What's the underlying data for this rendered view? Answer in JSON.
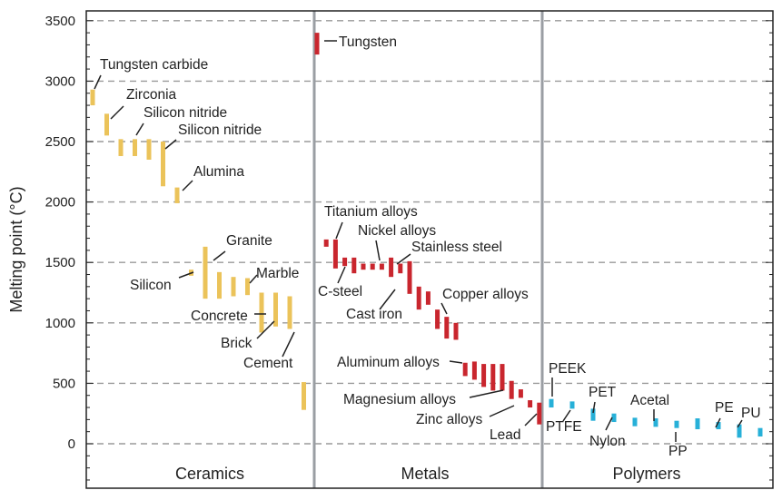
{
  "chart_data": {
    "type": "range-bar",
    "ylabel": "Melting point (°C)",
    "ylim": [
      -400,
      3600
    ],
    "yticks": [
      0,
      500,
      1000,
      1500,
      2000,
      2500,
      3000,
      3500
    ],
    "grid": "horizontal dashed",
    "colors": {
      "Ceramics": "#ebc35a",
      "Metals": "#c9262e",
      "Polymers": "#27b0d8"
    },
    "groups": [
      {
        "name": "Ceramics",
        "bars": [
          {
            "x": 1,
            "low": 2800,
            "high": 2930
          },
          {
            "x": 2,
            "low": 2550,
            "high": 2730
          },
          {
            "x": 3,
            "low": 2380,
            "high": 2520
          },
          {
            "x": 4,
            "low": 2380,
            "high": 2520
          },
          {
            "x": 5,
            "low": 2350,
            "high": 2520
          },
          {
            "x": 6,
            "low": 2130,
            "high": 2500
          },
          {
            "x": 7,
            "low": 1990,
            "high": 2120
          },
          {
            "x": 8,
            "low": 1390,
            "high": 1440
          },
          {
            "x": 9,
            "low": 1200,
            "high": 1630
          },
          {
            "x": 10,
            "low": 1200,
            "high": 1420
          },
          {
            "x": 11,
            "low": 1220,
            "high": 1380
          },
          {
            "x": 12,
            "low": 1230,
            "high": 1370
          },
          {
            "x": 13,
            "low": 920,
            "high": 1250
          },
          {
            "x": 14,
            "low": 970,
            "high": 1250
          },
          {
            "x": 15,
            "low": 950,
            "high": 1220
          },
          {
            "x": 16,
            "low": 280,
            "high": 510
          }
        ]
      },
      {
        "name": "Metals",
        "bars": [
          {
            "x": 1,
            "low": 3220,
            "high": 3400
          },
          {
            "x": 2,
            "low": 1630,
            "high": 1690
          },
          {
            "x": 3,
            "low": 1450,
            "high": 1690
          },
          {
            "x": 4,
            "low": 1470,
            "high": 1540
          },
          {
            "x": 5,
            "low": 1410,
            "high": 1540
          },
          {
            "x": 6,
            "low": 1440,
            "high": 1490
          },
          {
            "x": 7,
            "low": 1440,
            "high": 1490
          },
          {
            "x": 8,
            "low": 1440,
            "high": 1490
          },
          {
            "x": 9,
            "low": 1380,
            "high": 1540
          },
          {
            "x": 10,
            "low": 1410,
            "high": 1490
          },
          {
            "x": 11,
            "low": 1240,
            "high": 1510
          },
          {
            "x": 12,
            "low": 1110,
            "high": 1300
          },
          {
            "x": 13,
            "low": 1150,
            "high": 1260
          },
          {
            "x": 14,
            "low": 950,
            "high": 1110
          },
          {
            "x": 15,
            "low": 870,
            "high": 1050
          },
          {
            "x": 16,
            "low": 860,
            "high": 1000
          },
          {
            "x": 17,
            "low": 560,
            "high": 670
          },
          {
            "x": 18,
            "low": 530,
            "high": 680
          },
          {
            "x": 19,
            "low": 470,
            "high": 660
          },
          {
            "x": 20,
            "low": 440,
            "high": 660
          },
          {
            "x": 21,
            "low": 440,
            "high": 660
          },
          {
            "x": 22,
            "low": 370,
            "high": 520
          },
          {
            "x": 23,
            "low": 380,
            "high": 450
          },
          {
            "x": 24,
            "low": 300,
            "high": 360
          },
          {
            "x": 25,
            "low": 160,
            "high": 340
          }
        ]
      },
      {
        "name": "Polymers",
        "bars": [
          {
            "x": 1,
            "low": 300,
            "high": 370
          },
          {
            "x": 2,
            "low": 290,
            "high": 350
          },
          {
            "x": 3,
            "low": 190,
            "high": 290
          },
          {
            "x": 4,
            "low": 180,
            "high": 250
          },
          {
            "x": 5,
            "low": 145,
            "high": 215
          },
          {
            "x": 6,
            "low": 140,
            "high": 210
          },
          {
            "x": 7,
            "low": 130,
            "high": 190
          },
          {
            "x": 8,
            "low": 120,
            "high": 210
          },
          {
            "x": 9,
            "low": 120,
            "high": 180
          },
          {
            "x": 10,
            "low": 50,
            "high": 160
          },
          {
            "x": 11,
            "low": 60,
            "high": 130
          }
        ]
      }
    ],
    "annotations": [
      {
        "text": "Tungsten carbide"
      },
      {
        "text": "Zirconia"
      },
      {
        "text": "Silicon nitride"
      },
      {
        "text": "Silicon nitride"
      },
      {
        "text": "Alumina"
      },
      {
        "text": "Granite"
      },
      {
        "text": "Silicon"
      },
      {
        "text": "Marble"
      },
      {
        "text": "Concrete"
      },
      {
        "text": "Brick"
      },
      {
        "text": "Cement"
      },
      {
        "text": "Tungsten"
      },
      {
        "text": "Titanium alloys"
      },
      {
        "text": "Nickel alloys"
      },
      {
        "text": "Stainless steel"
      },
      {
        "text": "C-steel"
      },
      {
        "text": "Cast iron"
      },
      {
        "text": "Copper alloys"
      },
      {
        "text": "Aluminum alloys"
      },
      {
        "text": "Magnesium alloys"
      },
      {
        "text": "Zinc alloys"
      },
      {
        "text": "Lead"
      },
      {
        "text": "PEEK"
      },
      {
        "text": "PTFE"
      },
      {
        "text": "PET"
      },
      {
        "text": "Nylon"
      },
      {
        "text": "Acetal"
      },
      {
        "text": "PP"
      },
      {
        "text": "PE"
      },
      {
        "text": "PU"
      }
    ]
  }
}
